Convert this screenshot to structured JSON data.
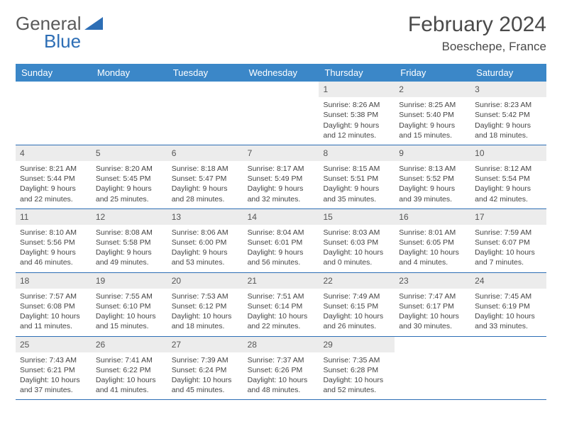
{
  "logo": {
    "text_general": "General",
    "text_blue": "Blue"
  },
  "title": "February 2024",
  "location": "Boeschepe, France",
  "colors": {
    "header_bar": "#3b87c8",
    "row_border": "#2d6eb5",
    "daynum_bg": "#ececec",
    "text": "#444444",
    "title_text": "#4a4a4a"
  },
  "weekdays": [
    "Sunday",
    "Monday",
    "Tuesday",
    "Wednesday",
    "Thursday",
    "Friday",
    "Saturday"
  ],
  "weeks": [
    [
      {
        "empty": true
      },
      {
        "empty": true
      },
      {
        "empty": true
      },
      {
        "empty": true
      },
      {
        "day": "1",
        "sunrise": "Sunrise: 8:26 AM",
        "sunset": "Sunset: 5:38 PM",
        "daylight1": "Daylight: 9 hours",
        "daylight2": "and 12 minutes."
      },
      {
        "day": "2",
        "sunrise": "Sunrise: 8:25 AM",
        "sunset": "Sunset: 5:40 PM",
        "daylight1": "Daylight: 9 hours",
        "daylight2": "and 15 minutes."
      },
      {
        "day": "3",
        "sunrise": "Sunrise: 8:23 AM",
        "sunset": "Sunset: 5:42 PM",
        "daylight1": "Daylight: 9 hours",
        "daylight2": "and 18 minutes."
      }
    ],
    [
      {
        "day": "4",
        "sunrise": "Sunrise: 8:21 AM",
        "sunset": "Sunset: 5:44 PM",
        "daylight1": "Daylight: 9 hours",
        "daylight2": "and 22 minutes."
      },
      {
        "day": "5",
        "sunrise": "Sunrise: 8:20 AM",
        "sunset": "Sunset: 5:45 PM",
        "daylight1": "Daylight: 9 hours",
        "daylight2": "and 25 minutes."
      },
      {
        "day": "6",
        "sunrise": "Sunrise: 8:18 AM",
        "sunset": "Sunset: 5:47 PM",
        "daylight1": "Daylight: 9 hours",
        "daylight2": "and 28 minutes."
      },
      {
        "day": "7",
        "sunrise": "Sunrise: 8:17 AM",
        "sunset": "Sunset: 5:49 PM",
        "daylight1": "Daylight: 9 hours",
        "daylight2": "and 32 minutes."
      },
      {
        "day": "8",
        "sunrise": "Sunrise: 8:15 AM",
        "sunset": "Sunset: 5:51 PM",
        "daylight1": "Daylight: 9 hours",
        "daylight2": "and 35 minutes."
      },
      {
        "day": "9",
        "sunrise": "Sunrise: 8:13 AM",
        "sunset": "Sunset: 5:52 PM",
        "daylight1": "Daylight: 9 hours",
        "daylight2": "and 39 minutes."
      },
      {
        "day": "10",
        "sunrise": "Sunrise: 8:12 AM",
        "sunset": "Sunset: 5:54 PM",
        "daylight1": "Daylight: 9 hours",
        "daylight2": "and 42 minutes."
      }
    ],
    [
      {
        "day": "11",
        "sunrise": "Sunrise: 8:10 AM",
        "sunset": "Sunset: 5:56 PM",
        "daylight1": "Daylight: 9 hours",
        "daylight2": "and 46 minutes."
      },
      {
        "day": "12",
        "sunrise": "Sunrise: 8:08 AM",
        "sunset": "Sunset: 5:58 PM",
        "daylight1": "Daylight: 9 hours",
        "daylight2": "and 49 minutes."
      },
      {
        "day": "13",
        "sunrise": "Sunrise: 8:06 AM",
        "sunset": "Sunset: 6:00 PM",
        "daylight1": "Daylight: 9 hours",
        "daylight2": "and 53 minutes."
      },
      {
        "day": "14",
        "sunrise": "Sunrise: 8:04 AM",
        "sunset": "Sunset: 6:01 PM",
        "daylight1": "Daylight: 9 hours",
        "daylight2": "and 56 minutes."
      },
      {
        "day": "15",
        "sunrise": "Sunrise: 8:03 AM",
        "sunset": "Sunset: 6:03 PM",
        "daylight1": "Daylight: 10 hours",
        "daylight2": "and 0 minutes."
      },
      {
        "day": "16",
        "sunrise": "Sunrise: 8:01 AM",
        "sunset": "Sunset: 6:05 PM",
        "daylight1": "Daylight: 10 hours",
        "daylight2": "and 4 minutes."
      },
      {
        "day": "17",
        "sunrise": "Sunrise: 7:59 AM",
        "sunset": "Sunset: 6:07 PM",
        "daylight1": "Daylight: 10 hours",
        "daylight2": "and 7 minutes."
      }
    ],
    [
      {
        "day": "18",
        "sunrise": "Sunrise: 7:57 AM",
        "sunset": "Sunset: 6:08 PM",
        "daylight1": "Daylight: 10 hours",
        "daylight2": "and 11 minutes."
      },
      {
        "day": "19",
        "sunrise": "Sunrise: 7:55 AM",
        "sunset": "Sunset: 6:10 PM",
        "daylight1": "Daylight: 10 hours",
        "daylight2": "and 15 minutes."
      },
      {
        "day": "20",
        "sunrise": "Sunrise: 7:53 AM",
        "sunset": "Sunset: 6:12 PM",
        "daylight1": "Daylight: 10 hours",
        "daylight2": "and 18 minutes."
      },
      {
        "day": "21",
        "sunrise": "Sunrise: 7:51 AM",
        "sunset": "Sunset: 6:14 PM",
        "daylight1": "Daylight: 10 hours",
        "daylight2": "and 22 minutes."
      },
      {
        "day": "22",
        "sunrise": "Sunrise: 7:49 AM",
        "sunset": "Sunset: 6:15 PM",
        "daylight1": "Daylight: 10 hours",
        "daylight2": "and 26 minutes."
      },
      {
        "day": "23",
        "sunrise": "Sunrise: 7:47 AM",
        "sunset": "Sunset: 6:17 PM",
        "daylight1": "Daylight: 10 hours",
        "daylight2": "and 30 minutes."
      },
      {
        "day": "24",
        "sunrise": "Sunrise: 7:45 AM",
        "sunset": "Sunset: 6:19 PM",
        "daylight1": "Daylight: 10 hours",
        "daylight2": "and 33 minutes."
      }
    ],
    [
      {
        "day": "25",
        "sunrise": "Sunrise: 7:43 AM",
        "sunset": "Sunset: 6:21 PM",
        "daylight1": "Daylight: 10 hours",
        "daylight2": "and 37 minutes."
      },
      {
        "day": "26",
        "sunrise": "Sunrise: 7:41 AM",
        "sunset": "Sunset: 6:22 PM",
        "daylight1": "Daylight: 10 hours",
        "daylight2": "and 41 minutes."
      },
      {
        "day": "27",
        "sunrise": "Sunrise: 7:39 AM",
        "sunset": "Sunset: 6:24 PM",
        "daylight1": "Daylight: 10 hours",
        "daylight2": "and 45 minutes."
      },
      {
        "day": "28",
        "sunrise": "Sunrise: 7:37 AM",
        "sunset": "Sunset: 6:26 PM",
        "daylight1": "Daylight: 10 hours",
        "daylight2": "and 48 minutes."
      },
      {
        "day": "29",
        "sunrise": "Sunrise: 7:35 AM",
        "sunset": "Sunset: 6:28 PM",
        "daylight1": "Daylight: 10 hours",
        "daylight2": "and 52 minutes."
      },
      {
        "empty": true
      },
      {
        "empty": true
      }
    ]
  ]
}
